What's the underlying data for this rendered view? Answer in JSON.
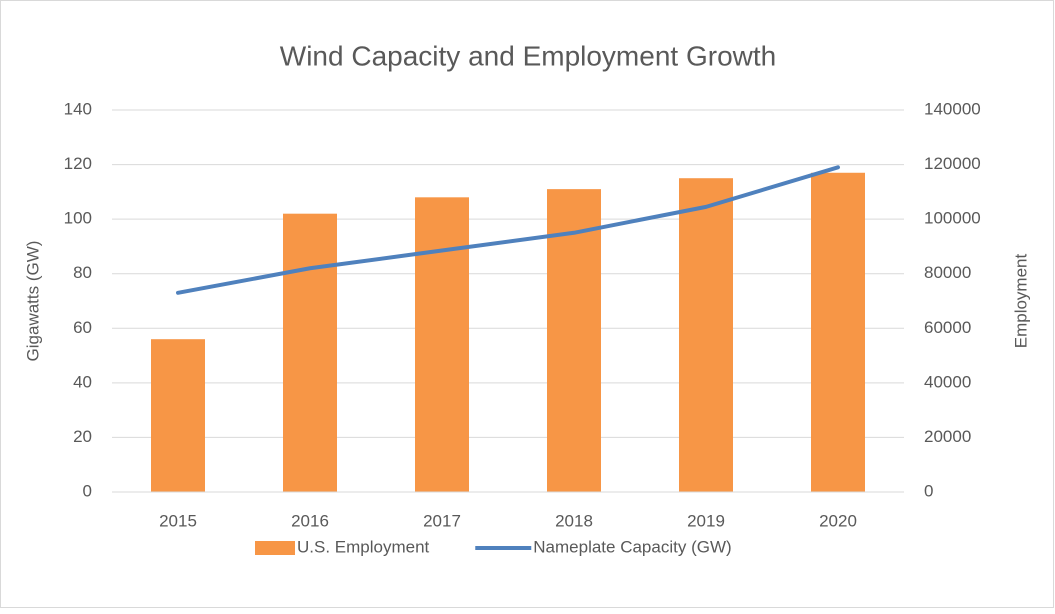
{
  "chart_data": {
    "type": "bar_line",
    "title": "Wind Capacity and Employment Growth",
    "categories": [
      "2015",
      "2016",
      "2017",
      "2018",
      "2019",
      "2020"
    ],
    "series": [
      {
        "name": "U.S. Employment",
        "color": "#f79646",
        "type": "bar",
        "axis": "y2",
        "values": [
          56000,
          102000,
          108000,
          111000,
          115000,
          117000
        ]
      },
      {
        "name": "Nameplate Capacity (GW)",
        "color": "#4f81bd",
        "type": "line",
        "axis": "y",
        "values": [
          73,
          82,
          88.5,
          95,
          104.5,
          119
        ]
      }
    ],
    "ylabel": "Gigawatts (GW)",
    "y2label": "Employment",
    "ylim": [
      0,
      140
    ],
    "yticks": [
      0,
      20,
      40,
      60,
      80,
      100,
      120,
      140
    ],
    "y2lim": [
      0,
      140000
    ],
    "y2ticks": [
      0,
      20000,
      40000,
      60000,
      80000,
      100000,
      120000,
      140000
    ],
    "grid": true,
    "legend": "bottom"
  }
}
